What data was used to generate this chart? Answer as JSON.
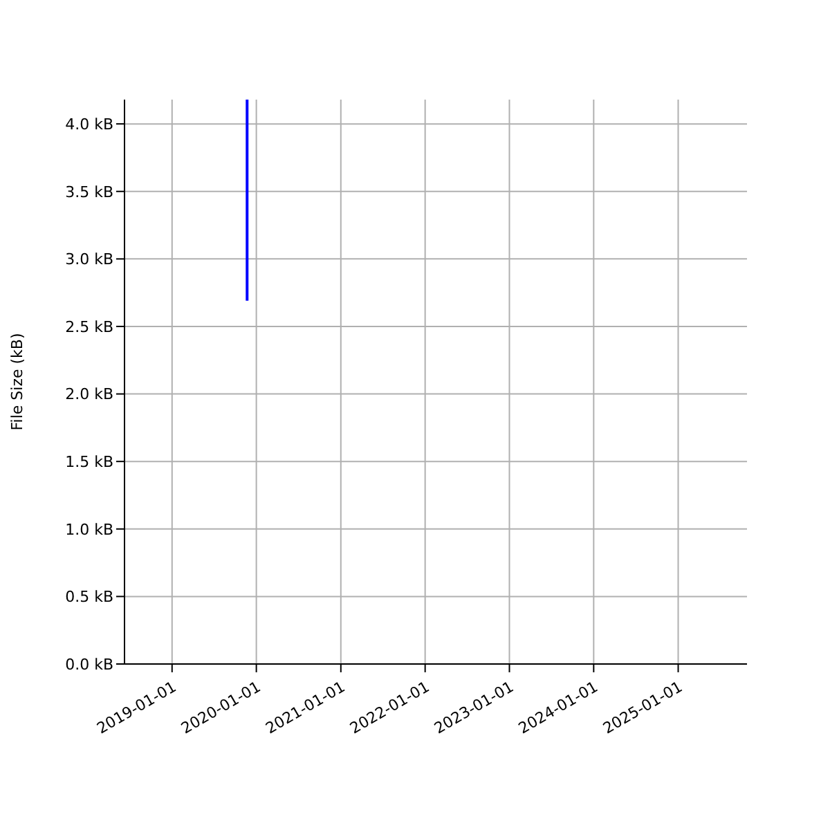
{
  "chart_data": {
    "type": "line",
    "ylabel": "File Size (kB)",
    "x": [
      "2019-11-22",
      "2019-11-22"
    ],
    "series": [
      {
        "color": "#0000ff",
        "values": [
          2.69,
          4.18
        ]
      }
    ],
    "xlim": [
      "2018-06-09",
      "2025-10-26"
    ],
    "xticks": [
      "2019-01-01",
      "2020-01-01",
      "2021-01-01",
      "2022-01-01",
      "2023-01-01",
      "2024-01-01",
      "2025-01-01"
    ],
    "ylim": [
      0,
      4.18
    ],
    "yticks": [
      {
        "value": 0,
        "label": "0.0 kB"
      },
      {
        "value": 0.5,
        "label": "0.5 kB"
      },
      {
        "value": 1,
        "label": "1.0 kB"
      },
      {
        "value": 1.5,
        "label": "1.5 kB"
      },
      {
        "value": 2,
        "label": "2.0 kB"
      },
      {
        "value": 2.5,
        "label": "2.5 kB"
      },
      {
        "value": 3,
        "label": "3.0 kB"
      },
      {
        "value": 3.5,
        "label": "3.5 kB"
      },
      {
        "value": 4,
        "label": "4.0 kB"
      }
    ],
    "grid": true,
    "legend": false,
    "marker": "none",
    "line_style": "solid"
  }
}
